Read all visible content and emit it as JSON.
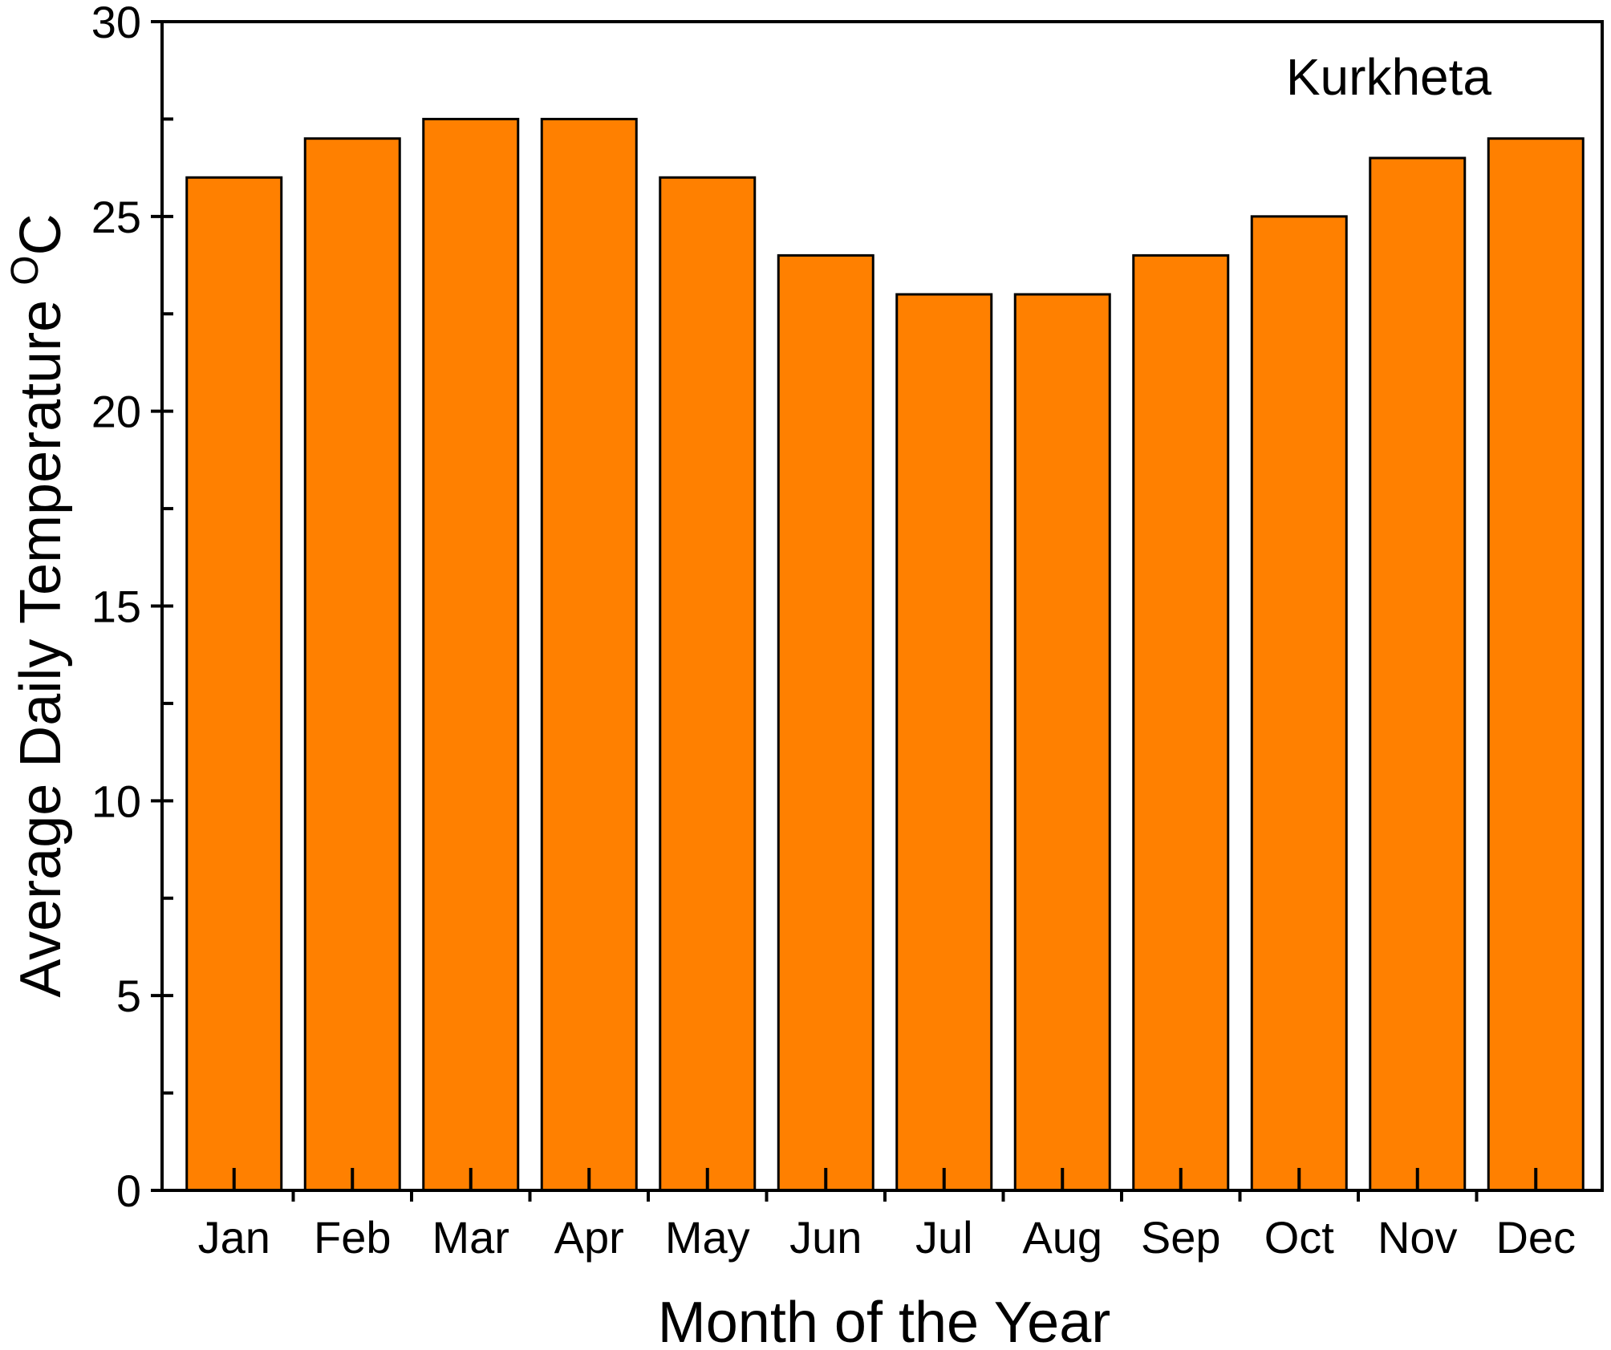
{
  "chart_data": {
    "type": "bar",
    "categories": [
      "Jan",
      "Feb",
      "Mar",
      "Apr",
      "May",
      "Jun",
      "Jul",
      "Aug",
      "Sep",
      "Oct",
      "Nov",
      "Dec"
    ],
    "values": [
      26,
      27,
      27.5,
      27.5,
      26,
      24,
      23,
      23,
      24,
      25,
      26.5,
      27
    ],
    "title": "",
    "annotation": "Kurkheta",
    "xlabel": "Month of the Year",
    "ylabel": "Average Daily Temperature",
    "ylabel_unit_sup": "O",
    "ylabel_unit": "C",
    "ylim": [
      0,
      30
    ],
    "yticks": [
      "0",
      "5",
      "10",
      "15",
      "20",
      "25",
      "30"
    ],
    "grid": false,
    "legend": "none",
    "colors": {
      "bar_fill": "#FF8000",
      "bar_stroke": "#000000",
      "axis": "#000000",
      "background": "#FFFFFF"
    }
  }
}
